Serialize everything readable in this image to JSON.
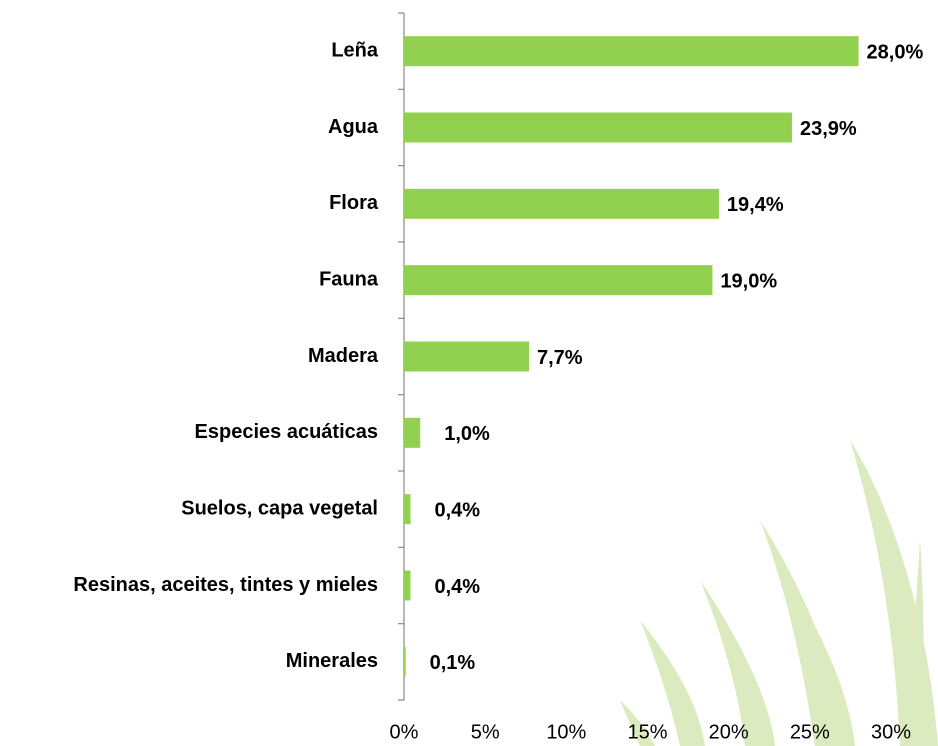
{
  "chart_data": {
    "type": "bar",
    "orientation": "horizontal",
    "categories": [
      "Leña",
      "Agua",
      "Flora",
      "Fauna",
      "Madera",
      "Especies acuáticas",
      "Suelos, capa vegetal",
      "Resinas, aceites, tintes y mieles",
      "Minerales"
    ],
    "values": [
      28.0,
      23.9,
      19.4,
      19.0,
      7.7,
      1.0,
      0.4,
      0.4,
      0.1
    ],
    "value_labels": [
      "28,0%",
      "23,9%",
      "19,4%",
      "19,0%",
      "7,7%",
      "1,0%",
      "0,4%",
      "0,4%",
      "0,1%"
    ],
    "color": "#92d050",
    "xlim": [
      0,
      30
    ],
    "xticks": [
      {
        "value": 0,
        "label": "0%"
      },
      {
        "value": 5,
        "label": "5%"
      },
      {
        "value": 10,
        "label": "10%"
      },
      {
        "value": 15,
        "label": "15%"
      },
      {
        "value": 20,
        "label": "20%"
      },
      {
        "value": 25,
        "label": "25%"
      },
      {
        "value": 30,
        "label": "30%"
      }
    ],
    "grid": false
  }
}
